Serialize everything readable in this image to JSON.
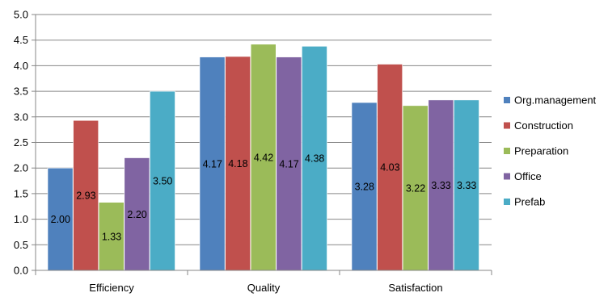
{
  "chart_data": {
    "type": "bar",
    "categories": [
      "Efficiency",
      "Quality",
      "Satisfaction"
    ],
    "series": [
      {
        "name": "Org.management",
        "color": "#4F81BD",
        "values": [
          2.0,
          4.17,
          3.28
        ]
      },
      {
        "name": "Construction",
        "color": "#C0504D",
        "values": [
          2.93,
          4.18,
          4.03
        ]
      },
      {
        "name": "Preparation",
        "color": "#9BBB59",
        "values": [
          1.33,
          4.42,
          3.22
        ]
      },
      {
        "name": "Office",
        "color": "#8064A2",
        "values": [
          2.2,
          4.17,
          3.33
        ]
      },
      {
        "name": "Prefab",
        "color": "#4BACC6",
        "values": [
          3.5,
          4.38,
          3.33
        ]
      }
    ],
    "data_labels": [
      [
        "2.00",
        "4.17",
        "3.28"
      ],
      [
        "2.93",
        "4.18",
        "4.03"
      ],
      [
        "1.33",
        "4.42",
        "3.22"
      ],
      [
        "2.20",
        "4.17",
        "3.33"
      ],
      [
        "3.50",
        "4.38",
        "3.33"
      ]
    ],
    "y_tick_labels": [
      "0.0",
      "0.5",
      "1.0",
      "1.5",
      "2.0",
      "2.5",
      "3.0",
      "3.5",
      "4.0",
      "4.5",
      "5.0"
    ],
    "ylim": [
      0,
      5
    ],
    "ytick_step": 0.5,
    "grid": true,
    "legend_position": "right",
    "title": "",
    "xlabel": "",
    "ylabel": ""
  }
}
